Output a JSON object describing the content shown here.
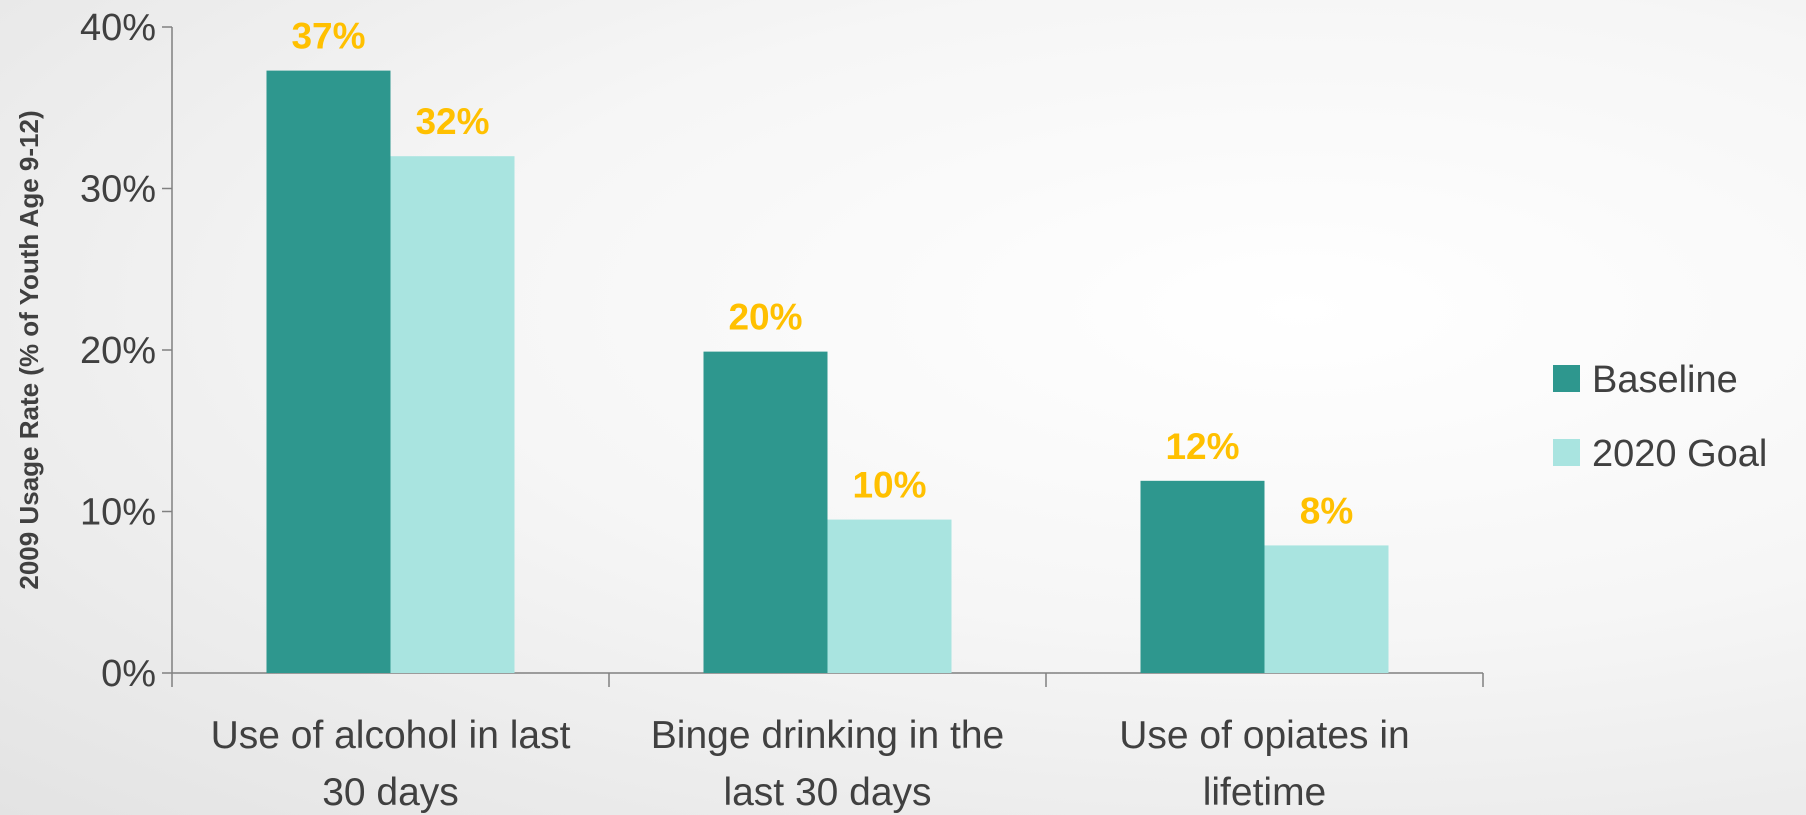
{
  "chart_data": {
    "type": "bar",
    "title": "",
    "xlabel": "",
    "ylabel": "2009 Usage Rate (% of Youth Age 9-12)",
    "ylim": [
      0,
      40
    ],
    "yticks": [
      0,
      10,
      20,
      30,
      40
    ],
    "ytick_labels": [
      "0%",
      "10%",
      "20%",
      "30%",
      "40%"
    ],
    "categories": [
      [
        "Use of alcohol in last",
        "30 days"
      ],
      [
        "Binge drinking in the",
        "last 30 days"
      ],
      [
        "Use of opiates in",
        "lifetime"
      ]
    ],
    "series": [
      {
        "name": "Baseline",
        "color": "#2e978e",
        "values": [
          37.3,
          19.9,
          11.9
        ],
        "labels": [
          "37%",
          "20%",
          "12%"
        ]
      },
      {
        "name": "2020 Goal",
        "color": "#a9e4e0",
        "values": [
          32.0,
          9.5,
          7.9
        ],
        "labels": [
          "32%",
          "10%",
          "8%"
        ]
      }
    ],
    "legend_position": "right",
    "grid": false,
    "data_label_color": "#ffc000",
    "axis_color": "#808080"
  }
}
